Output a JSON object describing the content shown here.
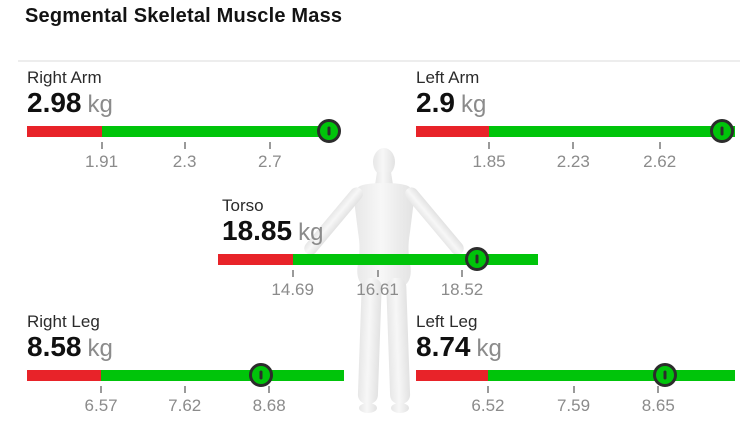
{
  "title": "Segmental Skeletal Muscle Mass",
  "colors": {
    "bar_red": "#e82329",
    "bar_green": "#00c40a",
    "marker_ring": "#2c2c2c",
    "tick_text": "#8b8b8b",
    "label_text": "#2b2b2b",
    "value_text": "#101010",
    "unit_text": "#8b8b8b",
    "divider": "#ededed",
    "figure_fill_light": "#f6f6f6",
    "figure_fill_dark": "#e4e4e4"
  },
  "figure": {
    "description": "3d-human-body-model"
  },
  "chart_data": {
    "type": "bullet-gauge",
    "title": "Segmental Skeletal Muscle Mass",
    "unit": "kg",
    "segments": [
      {
        "id": "right-arm",
        "label": "Right Arm",
        "value": "2.98",
        "value_num": 2.98,
        "unit": "kg",
        "ticks": [
          1.91,
          2.3,
          2.7
        ],
        "axis": {
          "min": 1.56,
          "max": 3.02
        },
        "red_until": 1.91
      },
      {
        "id": "left-arm",
        "label": "Left Arm",
        "value": "2.9",
        "value_num": 2.9,
        "unit": "kg",
        "ticks": [
          1.85,
          2.23,
          2.62
        ],
        "axis": {
          "min": 1.52,
          "max": 2.96
        },
        "red_until": 1.85
      },
      {
        "id": "torso",
        "label": "Torso",
        "value": "18.85",
        "value_num": 18.85,
        "unit": "kg",
        "ticks": [
          14.69,
          16.61,
          18.52
        ],
        "axis": {
          "min": 13.0,
          "max": 20.24
        },
        "red_until": 14.69
      },
      {
        "id": "right-leg",
        "label": "Right Leg",
        "value": "8.58",
        "value_num": 8.58,
        "unit": "kg",
        "ticks": [
          6.57,
          7.62,
          8.68
        ],
        "axis": {
          "min": 5.64,
          "max": 9.62
        },
        "red_until": 6.57
      },
      {
        "id": "left-leg",
        "label": "Left Leg",
        "value": "8.74",
        "value_num": 8.74,
        "unit": "kg",
        "ticks": [
          6.52,
          7.59,
          8.65
        ],
        "axis": {
          "min": 5.62,
          "max": 9.61
        },
        "red_until": 6.52
      }
    ]
  }
}
